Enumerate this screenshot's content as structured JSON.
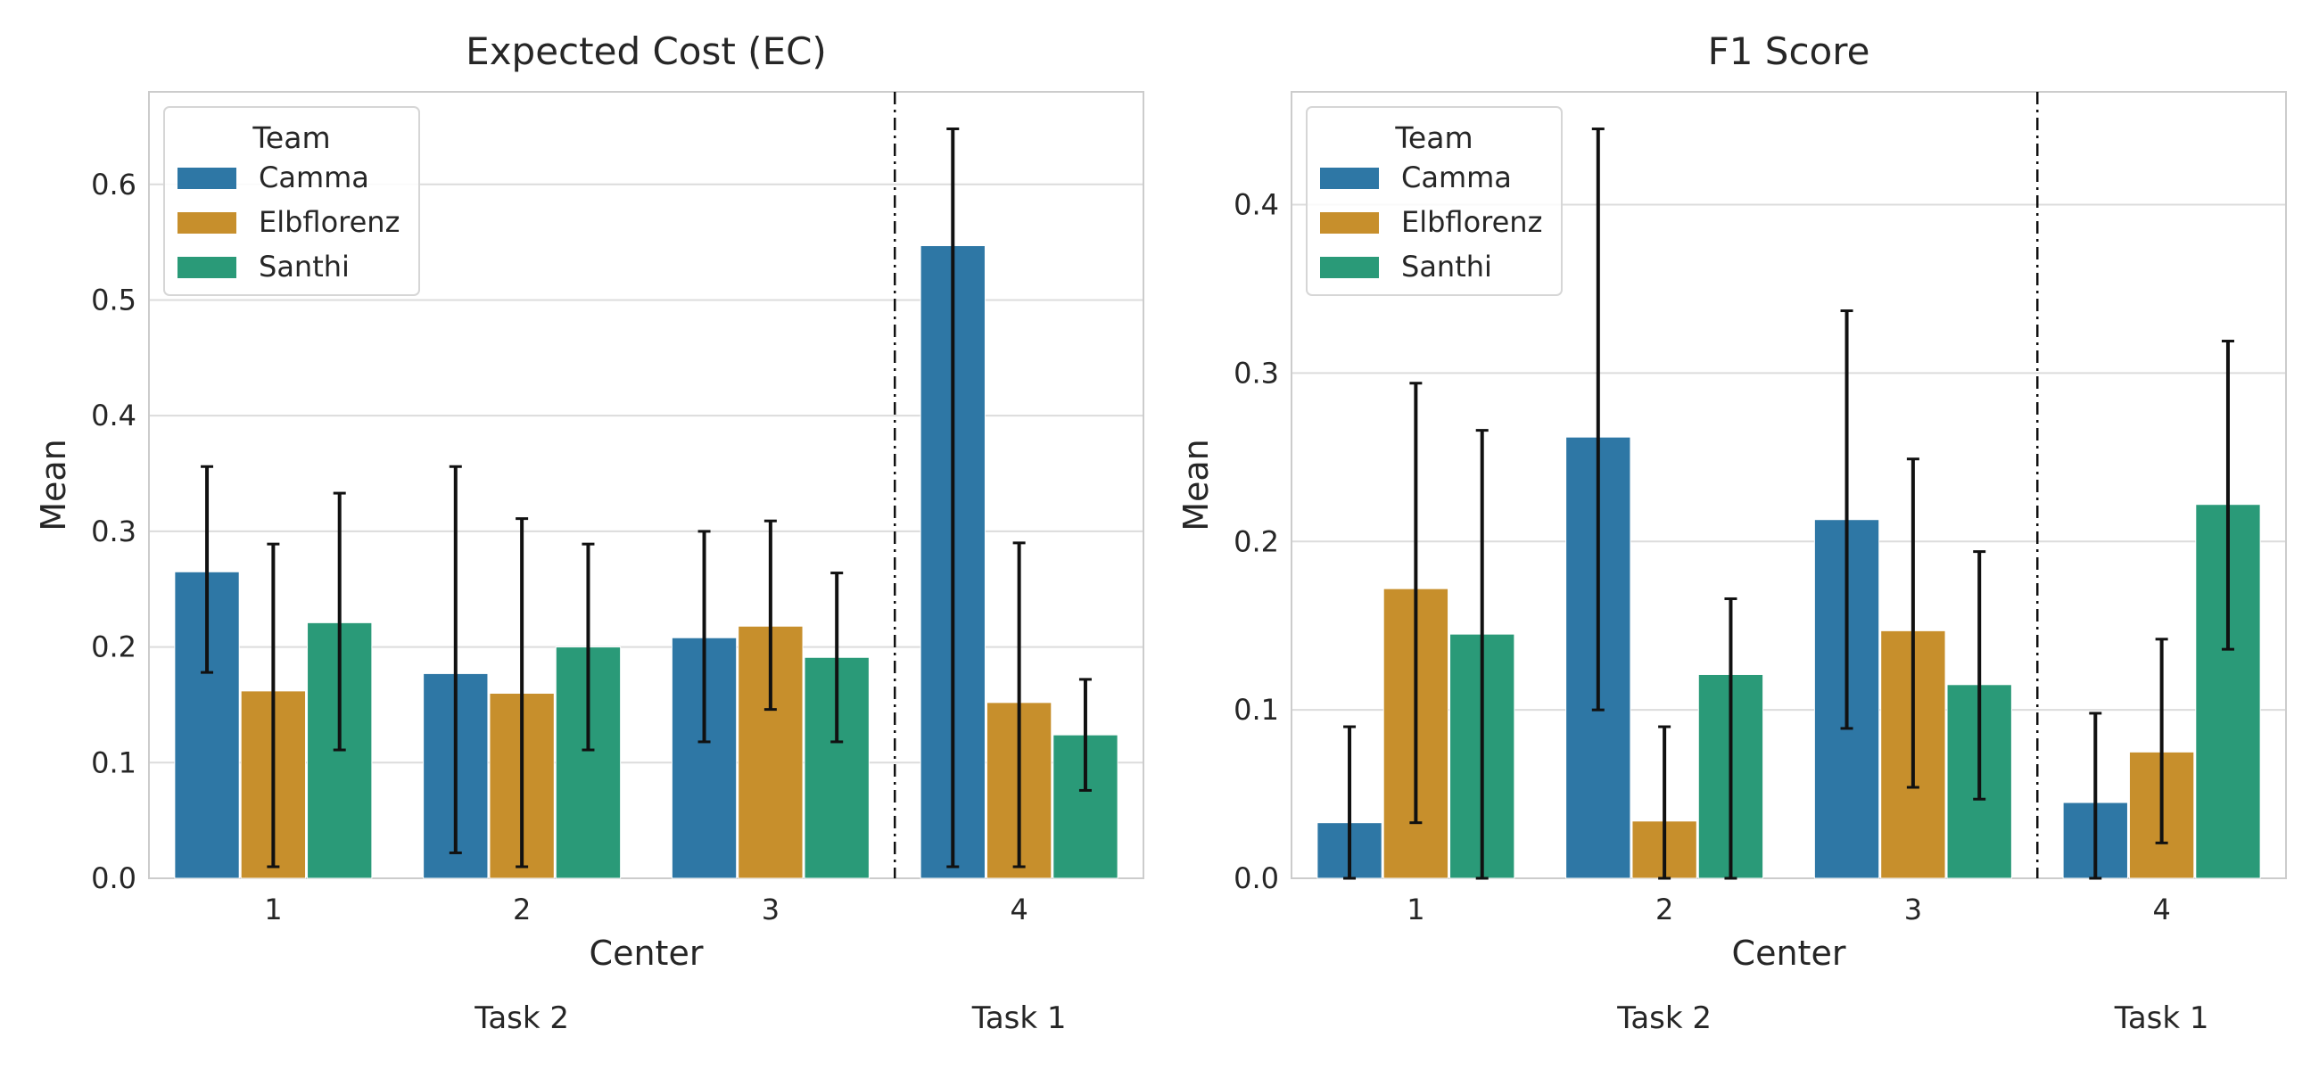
{
  "colors": {
    "Camma": "#2e77a5",
    "Elbflorenz": "#c78f2c",
    "Santhi": "#2a9a78"
  },
  "chart_data": [
    {
      "type": "bar",
      "title": "Expected Cost (EC)",
      "xlabel": "Center",
      "ylabel": "Mean",
      "categories": [
        "1",
        "2",
        "3",
        "4"
      ],
      "ylim": [
        0,
        0.68
      ],
      "yticks": [
        "0.0",
        "0.1",
        "0.2",
        "0.3",
        "0.4",
        "0.5",
        "0.6"
      ],
      "grid": true,
      "legend": {
        "title": "Team",
        "position": "top-left"
      },
      "groups": [
        {
          "label": "Task 2",
          "categories": [
            "1",
            "2",
            "3"
          ]
        },
        {
          "label": "Task 1",
          "categories": [
            "4"
          ]
        }
      ],
      "series": [
        {
          "name": "Camma",
          "values": [
            0.265,
            0.177,
            0.208,
            0.547
          ],
          "err_low": [
            0.178,
            0.022,
            0.118,
            0.01
          ],
          "err_high": [
            0.356,
            0.356,
            0.3,
            0.648
          ]
        },
        {
          "name": "Elbflorenz",
          "values": [
            0.162,
            0.16,
            0.218,
            0.152
          ],
          "err_low": [
            0.01,
            0.01,
            0.146,
            0.01
          ],
          "err_high": [
            0.289,
            0.311,
            0.309,
            0.29
          ]
        },
        {
          "name": "Santhi",
          "values": [
            0.221,
            0.2,
            0.191,
            0.124
          ],
          "err_low": [
            0.111,
            0.111,
            0.118,
            0.076
          ],
          "err_high": [
            0.333,
            0.289,
            0.264,
            0.172
          ]
        }
      ]
    },
    {
      "type": "bar",
      "title": "F1 Score",
      "xlabel": "Center",
      "ylabel": "Mean",
      "categories": [
        "1",
        "2",
        "3",
        "4"
      ],
      "ylim": [
        0,
        0.467
      ],
      "yticks": [
        "0.0",
        "0.1",
        "0.2",
        "0.3",
        "0.4"
      ],
      "grid": true,
      "legend": {
        "title": "Team",
        "position": "top-left"
      },
      "groups": [
        {
          "label": "Task 2",
          "categories": [
            "1",
            "2",
            "3"
          ]
        },
        {
          "label": "Task 1",
          "categories": [
            "4"
          ]
        }
      ],
      "series": [
        {
          "name": "Camma",
          "values": [
            0.033,
            0.262,
            0.213,
            0.045
          ],
          "err_low": [
            0.0,
            0.1,
            0.089,
            0.0
          ],
          "err_high": [
            0.09,
            0.445,
            0.337,
            0.098
          ]
        },
        {
          "name": "Elbflorenz",
          "values": [
            0.172,
            0.034,
            0.147,
            0.075
          ],
          "err_low": [
            0.033,
            0.0,
            0.054,
            0.021
          ],
          "err_high": [
            0.294,
            0.09,
            0.249,
            0.142
          ]
        },
        {
          "name": "Santhi",
          "values": [
            0.145,
            0.121,
            0.115,
            0.222
          ],
          "err_low": [
            0.0,
            0.0,
            0.047,
            0.136
          ],
          "err_high": [
            0.266,
            0.166,
            0.194,
            0.319
          ]
        }
      ]
    }
  ]
}
